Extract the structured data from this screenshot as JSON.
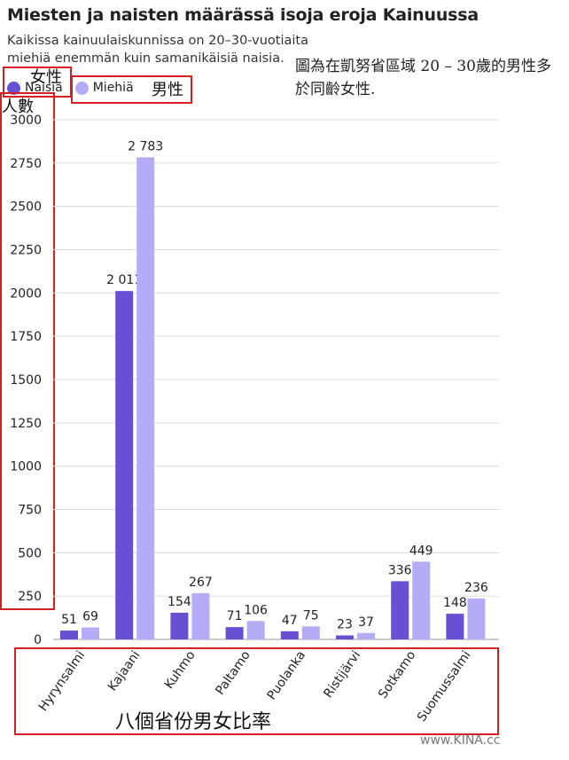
{
  "title": "Miesten ja naisten määrässä isoja eroja Kainuussa",
  "subtitle": "Kaikissa kainuulaiskunnissa on 20–30-vuotiaita miehiä enemmän kuin samanikäisiä naisia.",
  "annotations": {
    "summary": "圖為在凱努省區域 20 – 30歲的男性多於同齡女性.",
    "female": "女性",
    "male": "男性",
    "yaxis": "人數",
    "xaxis": "八個省份男女比率"
  },
  "watermark": "www.KINA.cc",
  "colors": {
    "naisia": "#6a4fd4",
    "miehia": "#b5acf7",
    "highlight": "#d42020"
  },
  "chart_data": {
    "type": "bar",
    "title": "Miesten ja naisten määrässä isoja eroja Kainuussa",
    "subtitle": "Kaikissa kainuulaiskunnissa on 20–30-vuotiaita miehiä enemmän kuin samanikäisiä naisia.",
    "categories": [
      "Hyrynsalmi",
      "Kajaani",
      "Kuhmo",
      "Paltamo",
      "Puolanka",
      "Ristijärvi",
      "Sotkamo",
      "Suomussalmi"
    ],
    "series": [
      {
        "name": "Naisia",
        "values": [
          51,
          2011,
          154,
          71,
          47,
          23,
          336,
          148
        ],
        "labels": [
          "51",
          "2 011",
          "154",
          "71",
          "47",
          "23",
          "336",
          "148"
        ]
      },
      {
        "name": "Miehiä",
        "values": [
          69,
          2783,
          267,
          106,
          75,
          37,
          449,
          236
        ],
        "labels": [
          "69",
          "2 783",
          "267",
          "106",
          "75",
          "37",
          "449",
          "236"
        ]
      }
    ],
    "yticks": [
      0,
      250,
      500,
      750,
      1000,
      1250,
      1500,
      1750,
      2000,
      2250,
      2500,
      2750,
      3000
    ],
    "ylim": [
      0,
      3000
    ],
    "grid": true,
    "legend": "top-left"
  }
}
